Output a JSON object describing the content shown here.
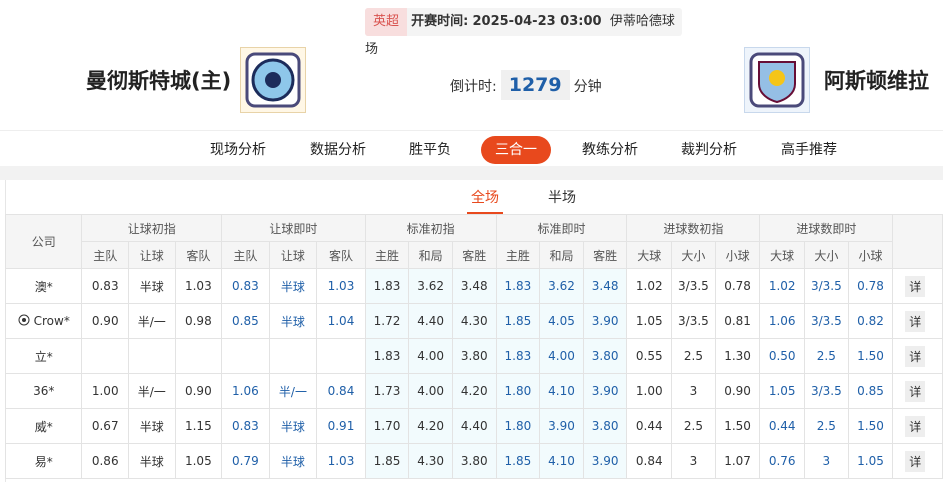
{
  "header": {
    "league": "英超",
    "time_label": "开赛时间:",
    "time": "2025-04-23 03:00",
    "venue": "伊蒂哈德球场",
    "home": "曼彻斯特城(主)",
    "away": "阿斯顿维拉",
    "countdown_label": "倒计时:",
    "countdown": "1279",
    "countdown_unit": "分钟"
  },
  "tabs": [
    "现场分析",
    "数据分析",
    "胜平负",
    "三合一",
    "教练分析",
    "裁判分析",
    "高手推荐"
  ],
  "subtabs": [
    "全场",
    "半场"
  ],
  "table": {
    "company_header": "公司",
    "groups": [
      "让球初指",
      "让球即时",
      "标准初指",
      "标准即时",
      "进球数初指",
      "进球数即时"
    ],
    "subheaders": [
      "主队",
      "让球",
      "客队",
      "主队",
      "让球",
      "客队",
      "主胜",
      "和局",
      "客胜",
      "主胜",
      "和局",
      "客胜",
      "大球",
      "大小",
      "小球",
      "大球",
      "大小",
      "小球"
    ],
    "action": "详",
    "rows": [
      {
        "company": "澳*",
        "cells": [
          "0.83",
          "半球",
          "1.03",
          "0.83",
          "半球",
          "1.03",
          "1.83",
          "3.62",
          "3.48",
          "1.83",
          "3.62",
          "3.48",
          "1.02",
          "3/3.5",
          "0.78",
          "1.02",
          "3/3.5",
          "0.78"
        ]
      },
      {
        "company": "Crow*",
        "cells": [
          "0.90",
          "半/一",
          "0.98",
          "0.85",
          "半球",
          "1.04",
          "1.72",
          "4.40",
          "4.30",
          "1.85",
          "4.05",
          "3.90",
          "1.05",
          "3/3.5",
          "0.81",
          "1.06",
          "3/3.5",
          "0.82"
        ]
      },
      {
        "company": "立*",
        "cells": [
          null,
          null,
          null,
          null,
          null,
          null,
          "1.83",
          "4.00",
          "3.80",
          "1.83",
          "4.00",
          "3.80",
          "0.55",
          "2.5",
          "1.30",
          "0.50",
          "2.5",
          "1.50"
        ]
      },
      {
        "company": "36*",
        "cells": [
          "1.00",
          "半/一",
          "0.90",
          "1.06",
          "半/一",
          "0.84",
          "1.73",
          "4.00",
          "4.20",
          "1.80",
          "4.10",
          "3.90",
          "1.00",
          "3",
          "0.90",
          "1.05",
          "3/3.5",
          "0.85"
        ]
      },
      {
        "company": "威*",
        "cells": [
          "0.67",
          "半球",
          "1.15",
          "0.83",
          "半球",
          "0.91",
          "1.70",
          "4.20",
          "4.40",
          "1.80",
          "3.90",
          "3.80",
          "0.44",
          "2.5",
          "1.50",
          "0.44",
          "2.5",
          "1.50"
        ]
      },
      {
        "company": "易*",
        "cells": [
          "0.86",
          "半球",
          "1.05",
          "0.79",
          "半球",
          "1.03",
          "1.85",
          "4.30",
          "3.80",
          "1.85",
          "4.10",
          "3.90",
          "0.84",
          "3",
          "1.07",
          "0.76",
          "3",
          "1.05"
        ]
      }
    ]
  }
}
